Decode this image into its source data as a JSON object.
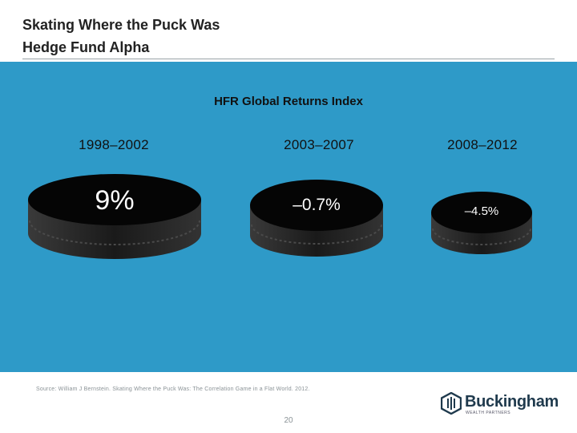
{
  "header": {
    "title": "Skating Where the Puck Was",
    "subtitle": "Hedge Fund Alpha"
  },
  "chart": {
    "heading": "HFR Global Returns Index",
    "periods": [
      {
        "label": "1998–2002",
        "value": "9%"
      },
      {
        "label": "2003–2007",
        "value": "–0.7%"
      },
      {
        "label": "2008–2012",
        "value": "–4.5%"
      }
    ]
  },
  "footer": {
    "source": "Source: William J Bernstein. Skating Where the Puck Was: The Correlation Game in a Flat World. 2012.",
    "page_number": "20"
  },
  "logo": {
    "name": "Buckingham",
    "tagline": "WEALTH PARTNERS"
  },
  "colors": {
    "panel": "#2e9ac8",
    "puck": "#1d1d1d",
    "logo": "#1f3a4d"
  }
}
